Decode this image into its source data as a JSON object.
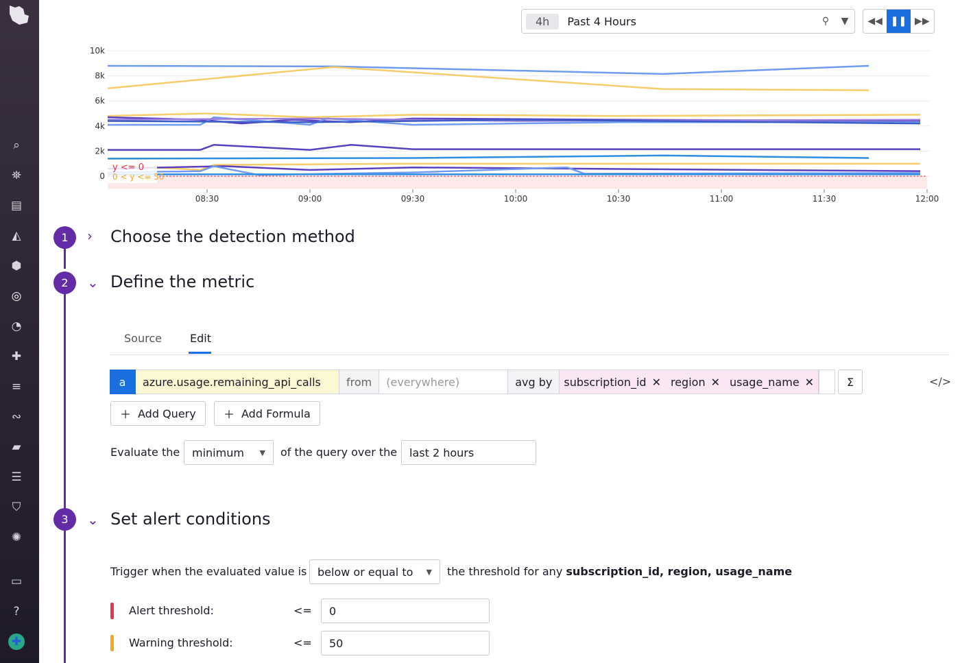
{
  "timeframe": {
    "badge": "4h",
    "label": "Past 4 Hours"
  },
  "colors": {
    "accent": "#632ca6",
    "blue": "#1a6fe0",
    "alert": "#e5344f",
    "warning": "#f5a623"
  },
  "chart_data": {
    "type": "line",
    "yticks": [
      "10k",
      "8k",
      "6k",
      "4k",
      "2k",
      "0"
    ],
    "xticks": [
      "08:30",
      "09:00",
      "09:30",
      "10:00",
      "10:30",
      "11:00",
      "11:30",
      "12:00"
    ],
    "ylim": [
      -1000,
      10000
    ],
    "xlim": [
      "08:01",
      "12:00"
    ],
    "grid": true,
    "markers": [
      {
        "label": "y <= 0",
        "color": "#e5344f"
      },
      {
        "label": "0 < y <= 50",
        "color": "#f5a623"
      }
    ],
    "series": [
      {
        "color": "#6f9cf0",
        "points": [
          [
            "08:01",
            8800
          ],
          [
            "09:07",
            8750
          ],
          [
            "10:43",
            8150
          ],
          [
            "11:43",
            8800
          ]
        ]
      },
      {
        "color": "#f5cd6a",
        "points": [
          [
            "08:01",
            7000
          ],
          [
            "09:07",
            8700
          ],
          [
            "10:43",
            6950
          ],
          [
            "11:43",
            6850
          ]
        ]
      },
      {
        "color": "#5a3fc0",
        "points": [
          [
            "08:01",
            2100
          ],
          [
            "08:28",
            2100
          ],
          [
            "08:32",
            2500
          ],
          [
            "09:00",
            2100
          ],
          [
            "09:12",
            2500
          ],
          [
            "09:30",
            2150
          ],
          [
            "10:30",
            2150
          ],
          [
            "11:58",
            2150
          ]
        ]
      },
      {
        "color": "#2c8ee0",
        "points": [
          [
            "08:01",
            1400
          ],
          [
            "09:30",
            1450
          ],
          [
            "10:43",
            1650
          ],
          [
            "11:43",
            1450
          ]
        ]
      },
      {
        "color": "#f5cd6a",
        "points": [
          [
            "08:01",
            4800
          ],
          [
            "08:30",
            5000
          ],
          [
            "09:00",
            4700
          ],
          [
            "09:30",
            4900
          ],
          [
            "10:30",
            4800
          ],
          [
            "11:58",
            4900
          ]
        ]
      },
      {
        "color": "#5a3fc0",
        "points": [
          [
            "08:01",
            4700
          ],
          [
            "08:28",
            4500
          ],
          [
            "08:40",
            4200
          ],
          [
            "08:55",
            4500
          ],
          [
            "09:12",
            4300
          ],
          [
            "09:30",
            4600
          ],
          [
            "10:30",
            4500
          ],
          [
            "11:58",
            4400
          ]
        ]
      },
      {
        "color": "#6f9cf0",
        "points": [
          [
            "08:01",
            4100
          ],
          [
            "08:28",
            4100
          ],
          [
            "08:32",
            4700
          ],
          [
            "09:00",
            4100
          ],
          [
            "09:05",
            4600
          ],
          [
            "09:30",
            4100
          ],
          [
            "10:30",
            4300
          ],
          [
            "11:58",
            4300
          ]
        ]
      },
      {
        "color": "#9b7de0",
        "points": [
          [
            "08:01",
            4500
          ],
          [
            "09:00",
            4600
          ],
          [
            "10:00",
            4400
          ],
          [
            "11:58",
            4500
          ]
        ]
      },
      {
        "color": "#3c5dc8",
        "points": [
          [
            "08:01",
            4400
          ],
          [
            "09:00",
            4300
          ],
          [
            "10:00",
            4500
          ],
          [
            "11:58",
            4200
          ]
        ]
      },
      {
        "color": "#f5cd6a",
        "points": [
          [
            "08:01",
            900
          ],
          [
            "08:28",
            500
          ],
          [
            "08:32",
            900
          ],
          [
            "09:30",
            1000
          ],
          [
            "11:58",
            1000
          ]
        ]
      },
      {
        "color": "#5a3fc0",
        "points": [
          [
            "08:01",
            600
          ],
          [
            "08:35",
            800
          ],
          [
            "09:00",
            500
          ],
          [
            "09:30",
            700
          ],
          [
            "11:58",
            400
          ]
        ]
      },
      {
        "color": "#6f9cf0",
        "points": [
          [
            "08:01",
            300
          ],
          [
            "08:28",
            400
          ],
          [
            "08:32",
            800
          ],
          [
            "08:45",
            100
          ],
          [
            "09:30",
            300
          ],
          [
            "10:15",
            700
          ],
          [
            "10:20",
            200
          ],
          [
            "11:58",
            250
          ]
        ]
      },
      {
        "color": "#2c8ee0",
        "points": [
          [
            "08:01",
            150
          ],
          [
            "11:58",
            150
          ]
        ]
      }
    ]
  },
  "steps": [
    {
      "num": "1",
      "title": "Choose the detection method"
    },
    {
      "num": "2",
      "title": "Define the metric"
    },
    {
      "num": "3",
      "title": "Set alert conditions"
    }
  ],
  "tabs": {
    "source": "Source",
    "edit": "Edit"
  },
  "query": {
    "letter": "a",
    "metric": "azure.usage.remaining_api_calls",
    "from": "from",
    "scope_placeholder": "(everywhere)",
    "avg_by": "avg by",
    "tags": [
      "subscription_id",
      "region",
      "usage_name"
    ],
    "sigma": "Σ",
    "code": "</>"
  },
  "buttons": {
    "add_query": "Add Query",
    "add_formula": "Add Formula"
  },
  "evaluate": {
    "prefix": "Evaluate the",
    "aggregation": "minimum",
    "middle": "of the query over the",
    "window": "last 2 hours"
  },
  "conditions": {
    "prefix": "Trigger when the evaluated value is",
    "comparator": "below or equal to",
    "middle": "the threshold for any",
    "groups": "subscription_id, region, usage_name",
    "alert_label": "Alert threshold:",
    "alert_op": "<=",
    "alert_value": "0",
    "warning_label": "Warning threshold:",
    "warning_op": "<=",
    "warning_value": "50"
  }
}
